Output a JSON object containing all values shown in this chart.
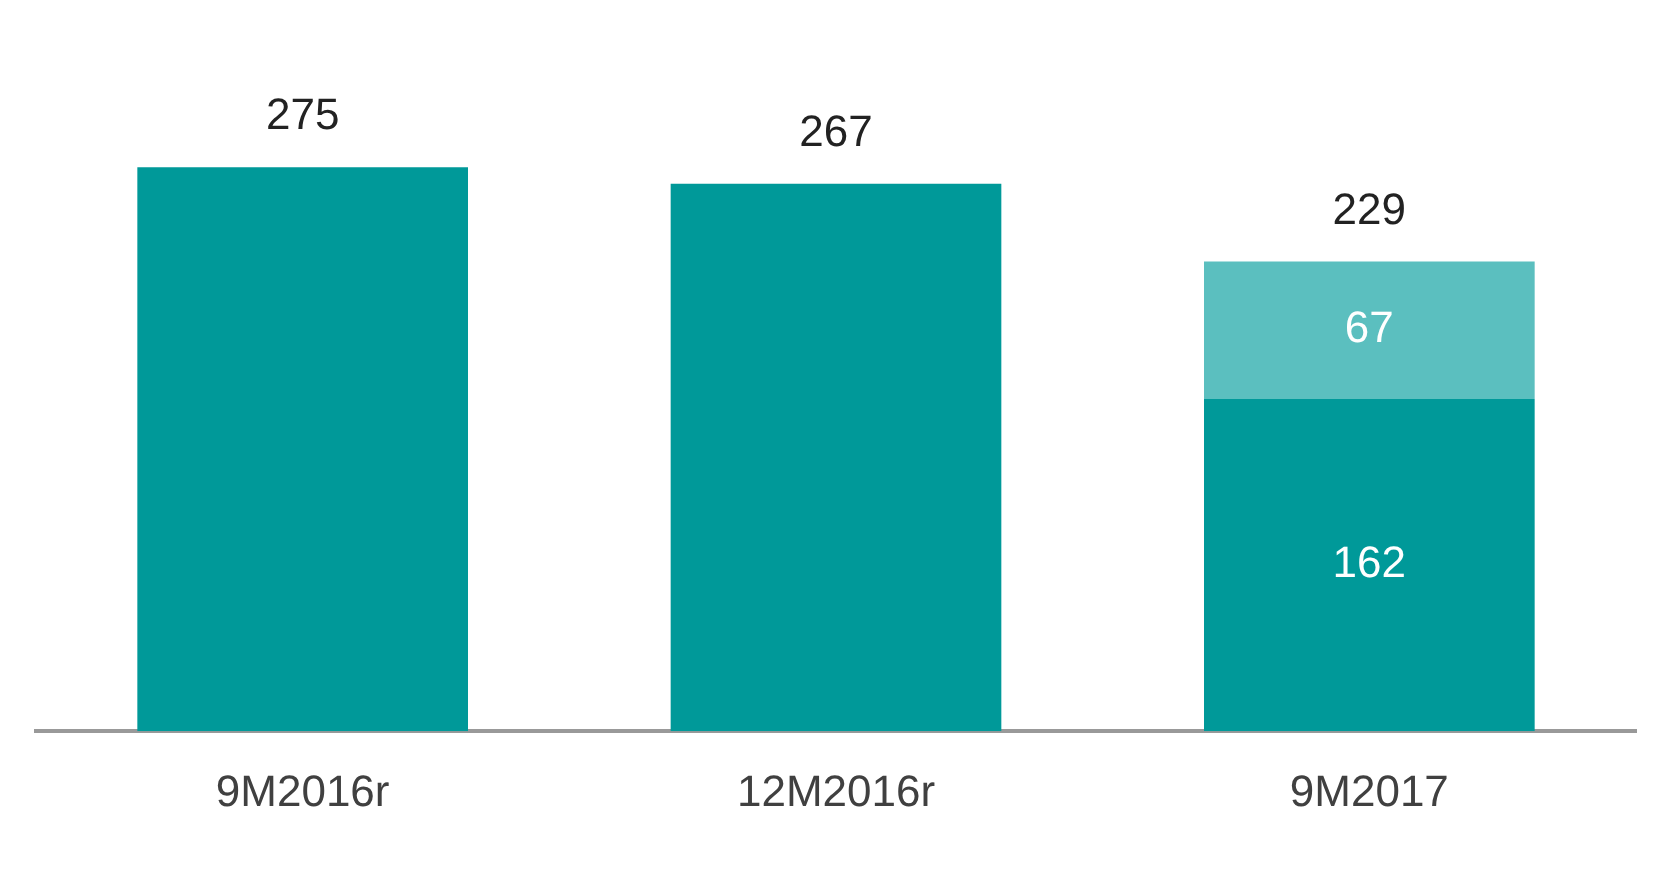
{
  "chart_data": {
    "type": "bar",
    "stacked": true,
    "categories": [
      "9M2016r",
      "12M2016r",
      "9M2017"
    ],
    "series": [
      {
        "color": "#009999",
        "values": [
          275,
          267,
          162
        ],
        "value_labels": [
          null,
          null,
          "162"
        ]
      },
      {
        "color": "#5bbfbf",
        "values": [
          null,
          null,
          67
        ],
        "value_labels": [
          null,
          null,
          "67"
        ]
      }
    ],
    "totals": [
      "275",
      "267",
      "229"
    ],
    "grid": false,
    "legend": false
  }
}
